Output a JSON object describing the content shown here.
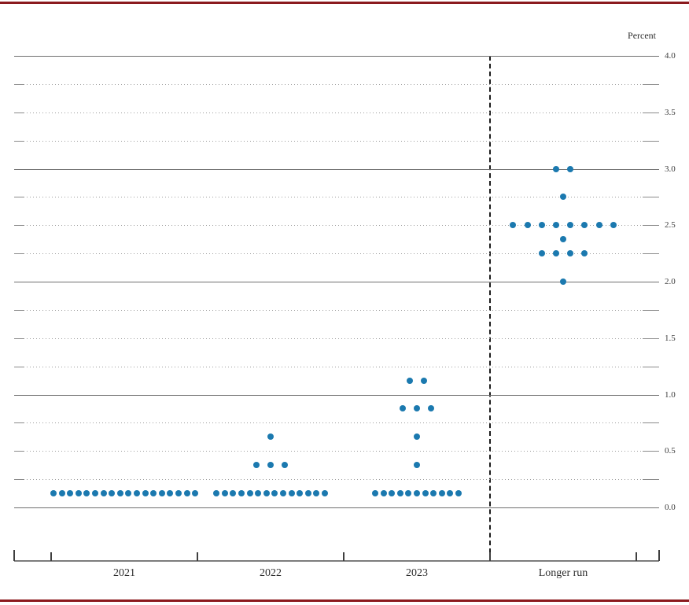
{
  "chart_data": {
    "type": "scatter",
    "title": "",
    "unit_label": "Percent",
    "categories": [
      "2021",
      "2022",
      "2023",
      "Longer run"
    ],
    "series": [
      {
        "category": "2021",
        "dots": [
          {
            "value": 0.125,
            "count": 18
          }
        ]
      },
      {
        "category": "2022",
        "dots": [
          {
            "value": 0.125,
            "count": 14
          },
          {
            "value": 0.375,
            "count": 3
          },
          {
            "value": 0.625,
            "count": 1
          }
        ]
      },
      {
        "category": "2023",
        "dots": [
          {
            "value": 0.125,
            "count": 11
          },
          {
            "value": 0.375,
            "count": 1
          },
          {
            "value": 0.625,
            "count": 1
          },
          {
            "value": 0.875,
            "count": 3
          },
          {
            "value": 1.125,
            "count": 2
          }
        ]
      },
      {
        "category": "Longer run",
        "dots": [
          {
            "value": 2.0,
            "count": 1
          },
          {
            "value": 2.25,
            "count": 4
          },
          {
            "value": 2.375,
            "count": 1
          },
          {
            "value": 2.5,
            "count": 8
          },
          {
            "value": 2.75,
            "count": 1
          },
          {
            "value": 3.0,
            "count": 2
          }
        ]
      }
    ],
    "ylim": [
      0.0,
      4.0
    ],
    "y_minor_step": 0.25,
    "y_label_step": 0.5,
    "y_tick_labels": [
      "4.0",
      "3.5",
      "3.0",
      "2.5",
      "2.0",
      "1.5",
      "1.0",
      "0.5",
      "0.0"
    ],
    "grid": true,
    "legend": "none",
    "separator_after_category": "2023"
  },
  "colors": {
    "accent_rule": "#8b1a1e",
    "dot": "#1b79af",
    "grid_major": "#6f6f6f",
    "grid_minor": "#9c9c9c",
    "axis": "#7d7d7d",
    "text": "#2e2e2e"
  }
}
